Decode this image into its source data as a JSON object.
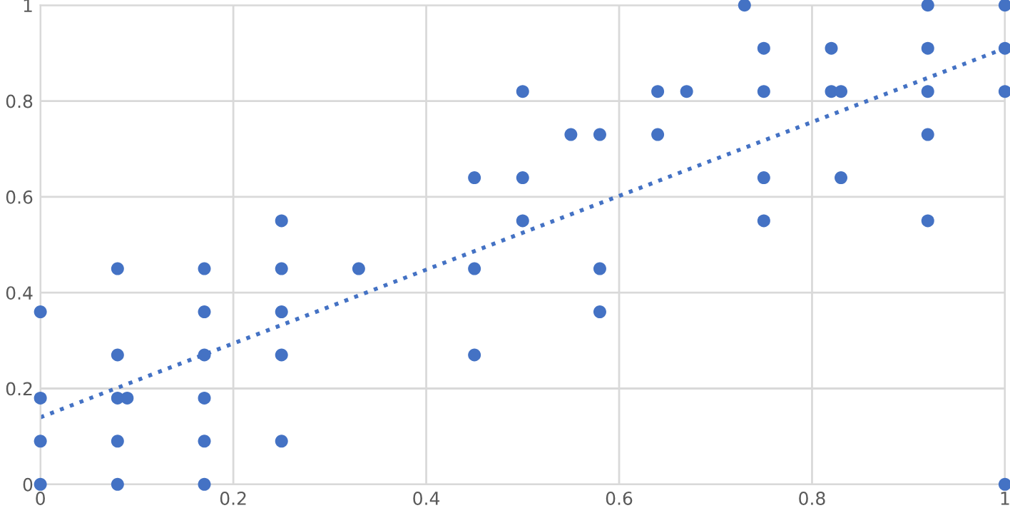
{
  "chart_data": {
    "type": "scatter",
    "xlim": [
      0,
      1
    ],
    "ylim": [
      0,
      1
    ],
    "xticks": [
      0,
      0.2,
      0.4,
      0.6,
      0.8,
      1
    ],
    "yticks": [
      0,
      0.2,
      0.4,
      0.6,
      0.8,
      1
    ],
    "grid": true,
    "legend": false,
    "series": [
      {
        "color": "#4472c4",
        "marker": "circle",
        "x": [
          0,
          0,
          0,
          0,
          0.08,
          0.08,
          0.08,
          0.08,
          0.08,
          0.09,
          0.17,
          0.17,
          0.17,
          0.17,
          0.17,
          0.17,
          0.25,
          0.25,
          0.25,
          0.25,
          0.25,
          0.33,
          0.45,
          0.45,
          0.45,
          0.5,
          0.5,
          0.5,
          0.55,
          0.58,
          0.58,
          0.58,
          0.64,
          0.64,
          0.67,
          0.73,
          0.75,
          0.75,
          0.75,
          0.75,
          0.82,
          0.82,
          0.83,
          0.83,
          0.92,
          0.92,
          0.92,
          0.92,
          0.92,
          1,
          1,
          1,
          1
        ],
        "values": [
          0,
          0.09,
          0.18,
          0.36,
          0,
          0.09,
          0.18,
          0.27,
          0.45,
          0.18,
          0,
          0.09,
          0.18,
          0.27,
          0.36,
          0.45,
          0.09,
          0.27,
          0.36,
          0.45,
          0.55,
          0.45,
          0.27,
          0.45,
          0.64,
          0.55,
          0.64,
          0.82,
          0.73,
          0.73,
          0.45,
          0.36,
          0.82,
          0.73,
          0.82,
          1,
          0.91,
          0.82,
          0.64,
          0.55,
          0.91,
          0.82,
          0.82,
          0.64,
          1,
          0.91,
          0.82,
          0.73,
          0.55,
          1,
          0.91,
          0.82,
          0
        ]
      },
      {
        "type": "line",
        "color": "#4472c4",
        "line_style": "dotted",
        "marker": "none",
        "x": [
          0,
          1
        ],
        "values": [
          0.14,
          0.91
        ]
      }
    ]
  }
}
